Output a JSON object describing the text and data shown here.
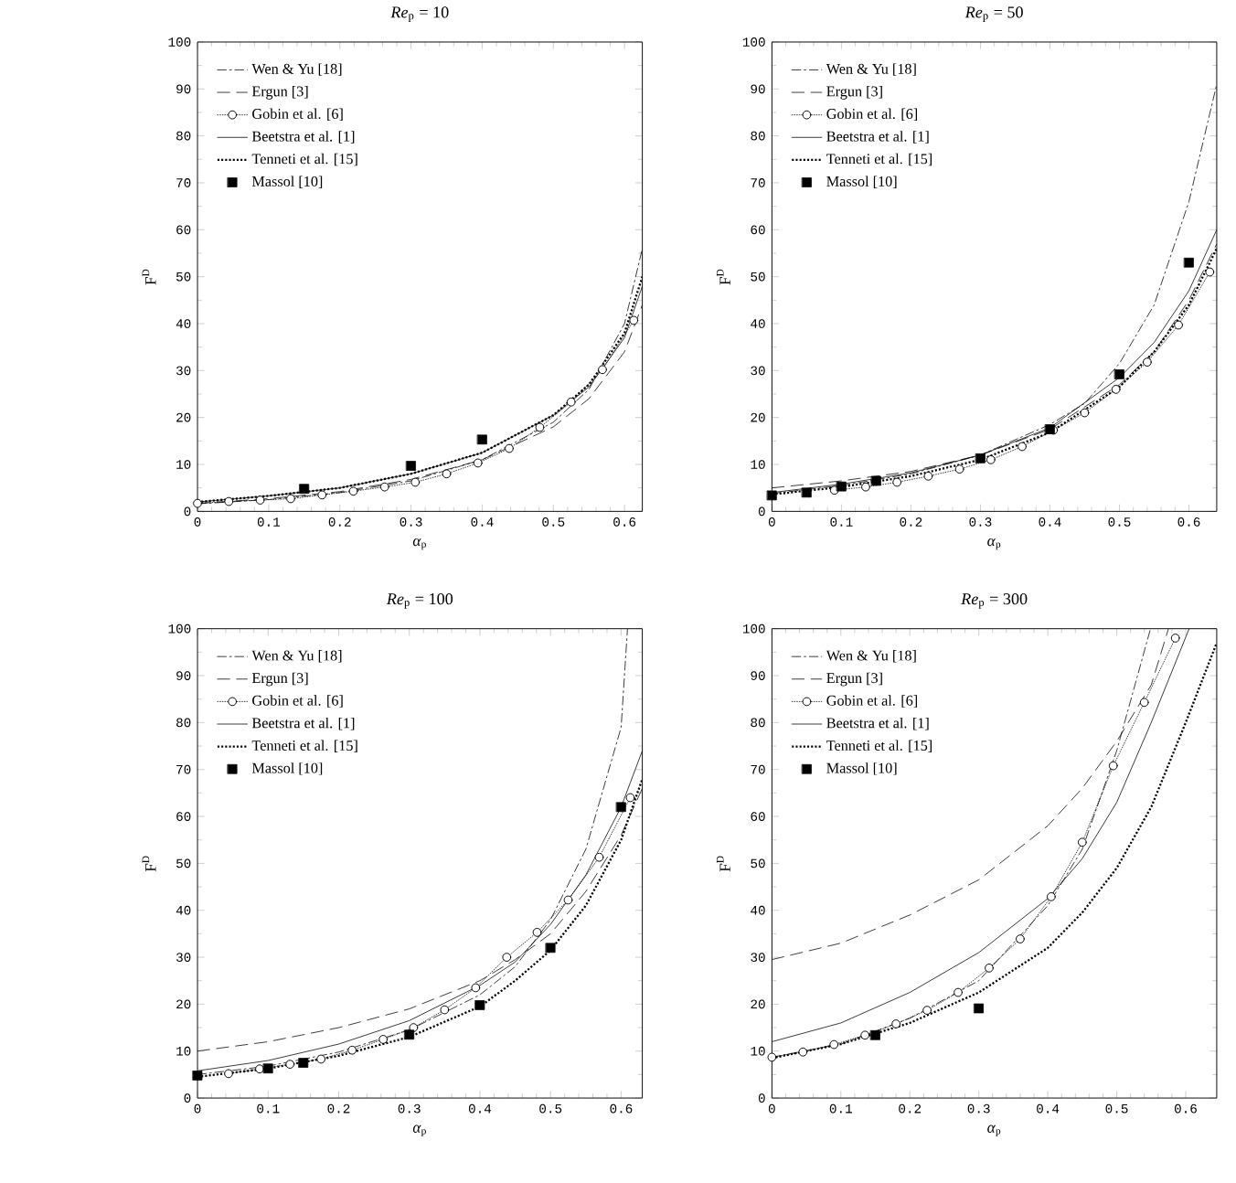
{
  "chart_data": [
    {
      "type": "line",
      "title": "*Re*$_{p}$ = 10",
      "xlabel": "*α*$_{p}$",
      "ylabel": "F$^{D}$",
      "xlim": [
        0,
        0.625
      ],
      "xticks": [
        0,
        0.1,
        0.2,
        0.3,
        0.4,
        0.5,
        0.6
      ],
      "ylim": [
        0,
        100
      ],
      "yticks": [
        0,
        10,
        20,
        30,
        40,
        50,
        60,
        70,
        80,
        90,
        100
      ],
      "legend": "top left",
      "series": [
        {
          "name": "Wen & Yu [18]",
          "color": "#000000",
          "line_style": "dashdot",
          "marker": "none",
          "x": [
            0,
            0.1,
            0.2,
            0.3,
            0.4,
            0.5,
            0.55,
            0.6,
            0.625
          ],
          "values": [
            1.6,
            2.5,
            4,
            6.5,
            11,
            19,
            26,
            40,
            56
          ]
        },
        {
          "name": "Ergun [3]",
          "color": "#000000",
          "line_style": "dashed",
          "marker": "none",
          "x": [
            0,
            0.1,
            0.2,
            0.3,
            0.4,
            0.5,
            0.55,
            0.6,
            0.625
          ],
          "values": [
            1.7,
            2.7,
            4.2,
            6.8,
            11,
            18,
            24,
            34,
            44
          ]
        },
        {
          "name": "Gobin et al. [6]",
          "color": "#000000",
          "line_style": "dotted",
          "marker": "circle",
          "x": [
            0,
            0.044,
            0.088,
            0.131,
            0.175,
            0.219,
            0.263,
            0.306,
            0.35,
            0.394,
            0.438,
            0.481,
            0.525,
            0.569,
            0.613
          ],
          "values": [
            1.7,
            2.1,
            2.4,
            2.7,
            3.5,
            4.3,
            5.2,
            6.2,
            8,
            10.3,
            13.4,
            17.9,
            23.3,
            30.2,
            40.7
          ]
        },
        {
          "name": "Beetstra et al. [1]",
          "color": "#000000",
          "line_style": "solid",
          "marker": "none",
          "x": [
            0,
            0.1,
            0.2,
            0.3,
            0.4,
            0.5,
            0.55,
            0.6,
            0.625
          ],
          "values": [
            2,
            3.3,
            5,
            8,
            12.5,
            20.5,
            26.5,
            37,
            48
          ]
        },
        {
          "name": "Tenneti et al. [15]",
          "color": "#000000",
          "line_style": "densely dotted",
          "marker": "none",
          "x": [
            0,
            0.1,
            0.2,
            0.3,
            0.4,
            0.5,
            0.55,
            0.6,
            0.625
          ],
          "values": [
            2,
            3.3,
            5,
            8,
            12.5,
            20.5,
            27,
            38,
            50
          ]
        },
        {
          "name": "Massol [10]",
          "type": "scatter",
          "color": "#000000",
          "marker": "square",
          "x": [
            0.15,
            0.3,
            0.4
          ],
          "values": [
            4.8,
            9.7,
            15.3
          ]
        }
      ]
    },
    {
      "type": "line",
      "title": "*Re*$_{p}$ = 50",
      "xlabel": "*α*$_{p}$",
      "ylabel": "F$^{D}$",
      "xlim": [
        0,
        0.64
      ],
      "xticks": [
        0,
        0.1,
        0.2,
        0.3,
        0.4,
        0.5,
        0.6
      ],
      "ylim": [
        0,
        100
      ],
      "yticks": [
        0,
        10,
        20,
        30,
        40,
        50,
        60,
        70,
        80,
        90,
        100
      ],
      "legend": "top left",
      "series": [
        {
          "name": "Wen & Yu [18]",
          "color": "#000000",
          "line_style": "dashdot",
          "marker": "none",
          "x": [
            0,
            0.1,
            0.2,
            0.3,
            0.4,
            0.45,
            0.5,
            0.55,
            0.6,
            0.64
          ],
          "values": [
            3.8,
            5.5,
            8,
            12,
            18.5,
            23,
            31.5,
            44,
            66,
            91
          ]
        },
        {
          "name": "Ergun [3]",
          "color": "#000000",
          "line_style": "dashed",
          "marker": "none",
          "x": [
            0,
            0.1,
            0.2,
            0.3,
            0.4,
            0.5,
            0.55,
            0.6,
            0.64
          ],
          "values": [
            5,
            6.5,
            8.5,
            12,
            17.5,
            27,
            34,
            45,
            57
          ]
        },
        {
          "name": "Gobin et al. [6]",
          "color": "#000000",
          "line_style": "dotted",
          "marker": "circle",
          "x": [
            0.09,
            0.135,
            0.18,
            0.225,
            0.27,
            0.315,
            0.36,
            0.405,
            0.45,
            0.495,
            0.54,
            0.585,
            0.63
          ],
          "values": [
            4.5,
            5.2,
            6.2,
            7.5,
            9,
            11,
            13.8,
            17.3,
            21,
            26,
            31.8,
            39.7,
            51
          ]
        },
        {
          "name": "Beetstra et al. [1]",
          "color": "#000000",
          "line_style": "solid",
          "marker": "none",
          "x": [
            0,
            0.1,
            0.2,
            0.3,
            0.4,
            0.5,
            0.55,
            0.6,
            0.64
          ],
          "values": [
            4,
            5.8,
            8.2,
            12,
            17.8,
            28.5,
            36,
            47,
            60
          ]
        },
        {
          "name": "Tenneti et al. [15]",
          "color": "#000000",
          "line_style": "densely dotted",
          "marker": "none",
          "x": [
            0,
            0.1,
            0.2,
            0.3,
            0.4,
            0.5,
            0.55,
            0.6,
            0.64
          ],
          "values": [
            3.6,
            5.2,
            7.5,
            11,
            16.8,
            26.5,
            34,
            44,
            56
          ]
        },
        {
          "name": "Massol [10]",
          "type": "scatter",
          "color": "#000000",
          "marker": "square",
          "x": [
            0,
            0.05,
            0.1,
            0.15,
            0.3,
            0.4,
            0.5,
            0.6
          ],
          "values": [
            3.4,
            4,
            5.3,
            6.5,
            11.3,
            17.5,
            29.2,
            53
          ]
        }
      ]
    },
    {
      "type": "line",
      "title": "*Re*$_{p}$ = 100",
      "xlabel": "*α*$_{p}$",
      "ylabel": "F$^{D}$",
      "xlim": [
        0,
        0.63
      ],
      "xticks": [
        0,
        0.1,
        0.2,
        0.3,
        0.4,
        0.5,
        0.6
      ],
      "ylim": [
        0,
        100
      ],
      "yticks": [
        0,
        10,
        20,
        30,
        40,
        50,
        60,
        70,
        80,
        90,
        100
      ],
      "legend": "top left",
      "series": [
        {
          "name": "Wen & Yu [18]",
          "color": "#000000",
          "line_style": "dashdot",
          "marker": "none",
          "x": [
            0,
            0.1,
            0.2,
            0.3,
            0.4,
            0.45,
            0.5,
            0.55,
            0.6,
            0.609
          ],
          "values": [
            5,
            6.8,
            9.8,
            14.5,
            22,
            28,
            38,
            53,
            79,
            100
          ]
        },
        {
          "name": "Ergun [3]",
          "color": "#000000",
          "line_style": "dashed",
          "marker": "none",
          "x": [
            0,
            0.1,
            0.2,
            0.3,
            0.4,
            0.45,
            0.5,
            0.55,
            0.6,
            0.63
          ],
          "values": [
            10,
            12,
            15,
            19,
            25,
            29.5,
            35,
            44,
            56,
            66
          ]
        },
        {
          "name": "Gobin et al. [6]",
          "color": "#000000",
          "line_style": "dotted",
          "marker": "circle",
          "x": [
            0.044,
            0.088,
            0.131,
            0.175,
            0.219,
            0.263,
            0.306,
            0.35,
            0.394,
            0.438,
            0.481,
            0.525,
            0.569,
            0.613
          ],
          "values": [
            5.2,
            6.2,
            7.2,
            8.3,
            10.2,
            12.5,
            15,
            18.8,
            23.5,
            30,
            35.3,
            42.2,
            51.3,
            64
          ]
        },
        {
          "name": "Beetstra et al. [1]",
          "color": "#000000",
          "line_style": "solid",
          "marker": "none",
          "x": [
            0,
            0.1,
            0.2,
            0.3,
            0.4,
            0.45,
            0.5,
            0.55,
            0.6,
            0.63
          ],
          "values": [
            5.8,
            8,
            11.5,
            16.5,
            24,
            29,
            37,
            47.5,
            62,
            74
          ]
        },
        {
          "name": "Tenneti et al. [15]",
          "color": "#000000",
          "line_style": "densely dotted",
          "marker": "none",
          "x": [
            0,
            0.1,
            0.2,
            0.3,
            0.4,
            0.45,
            0.5,
            0.55,
            0.6,
            0.63
          ],
          "values": [
            4.5,
            6.3,
            9,
            13,
            19.5,
            25,
            31.5,
            41,
            55,
            68
          ]
        },
        {
          "name": "Massol [10]",
          "type": "scatter",
          "color": "#000000",
          "marker": "square",
          "x": [
            0,
            0.1,
            0.15,
            0.3,
            0.4,
            0.5,
            0.6
          ],
          "values": [
            4.8,
            6.3,
            7.5,
            13.5,
            19.8,
            32,
            62
          ]
        }
      ]
    },
    {
      "type": "line",
      "title": "*Re*$_{p}$ = 300",
      "xlabel": "*α*$_{p}$",
      "ylabel": "F$^{D}$",
      "xlim": [
        0,
        0.645
      ],
      "xticks": [
        0,
        0.1,
        0.2,
        0.3,
        0.4,
        0.5,
        0.6
      ],
      "ylim": [
        0,
        100
      ],
      "yticks": [
        0,
        10,
        20,
        30,
        40,
        50,
        60,
        70,
        80,
        90,
        100
      ],
      "legend": "top left",
      "series": [
        {
          "name": "Wen & Yu [18]",
          "color": "#000000",
          "line_style": "dashdot",
          "marker": "none",
          "x": [
            0,
            0.1,
            0.2,
            0.3,
            0.4,
            0.45,
            0.5,
            0.549
          ],
          "values": [
            8.7,
            11.5,
            17,
            25,
            41,
            53,
            74,
            100
          ]
        },
        {
          "name": "Ergun [3]",
          "color": "#000000",
          "line_style": "dashed",
          "marker": "none",
          "x": [
            0,
            0.1,
            0.2,
            0.3,
            0.4,
            0.45,
            0.5,
            0.55,
            0.575
          ],
          "values": [
            29.5,
            33,
            39,
            46.5,
            58,
            66,
            76,
            88,
            100
          ]
        },
        {
          "name": "Gobin et al. [6]",
          "color": "#000000",
          "line_style": "dotted",
          "marker": "circle",
          "x": [
            0,
            0.045,
            0.09,
            0.135,
            0.18,
            0.225,
            0.27,
            0.315,
            0.36,
            0.405,
            0.45,
            0.495,
            0.54,
            0.585
          ],
          "values": [
            8.7,
            9.8,
            11.4,
            13.4,
            15.8,
            18.7,
            22.5,
            27.7,
            33.9,
            42.9,
            54.5,
            70.8,
            84.3,
            98
          ]
        },
        {
          "name": "Beetstra et al. [1]",
          "color": "#000000",
          "line_style": "solid",
          "marker": "none",
          "x": [
            0,
            0.1,
            0.2,
            0.3,
            0.4,
            0.45,
            0.5,
            0.55,
            0.605
          ],
          "values": [
            12,
            16,
            22.5,
            31,
            42.5,
            51,
            63,
            80,
            100
          ]
        },
        {
          "name": "Tenneti et al. [15]",
          "color": "#000000",
          "line_style": "densely dotted",
          "marker": "none",
          "x": [
            0,
            0.1,
            0.2,
            0.3,
            0.4,
            0.45,
            0.5,
            0.55,
            0.6,
            0.645
          ],
          "values": [
            8.5,
            11.5,
            16,
            22.5,
            32,
            39.5,
            49,
            62,
            80,
            97
          ]
        },
        {
          "name": "Massol [10]",
          "type": "scatter",
          "color": "#000000",
          "marker": "square",
          "x": [
            0.15,
            0.3
          ],
          "values": [
            13.4,
            19.1
          ]
        }
      ]
    }
  ]
}
